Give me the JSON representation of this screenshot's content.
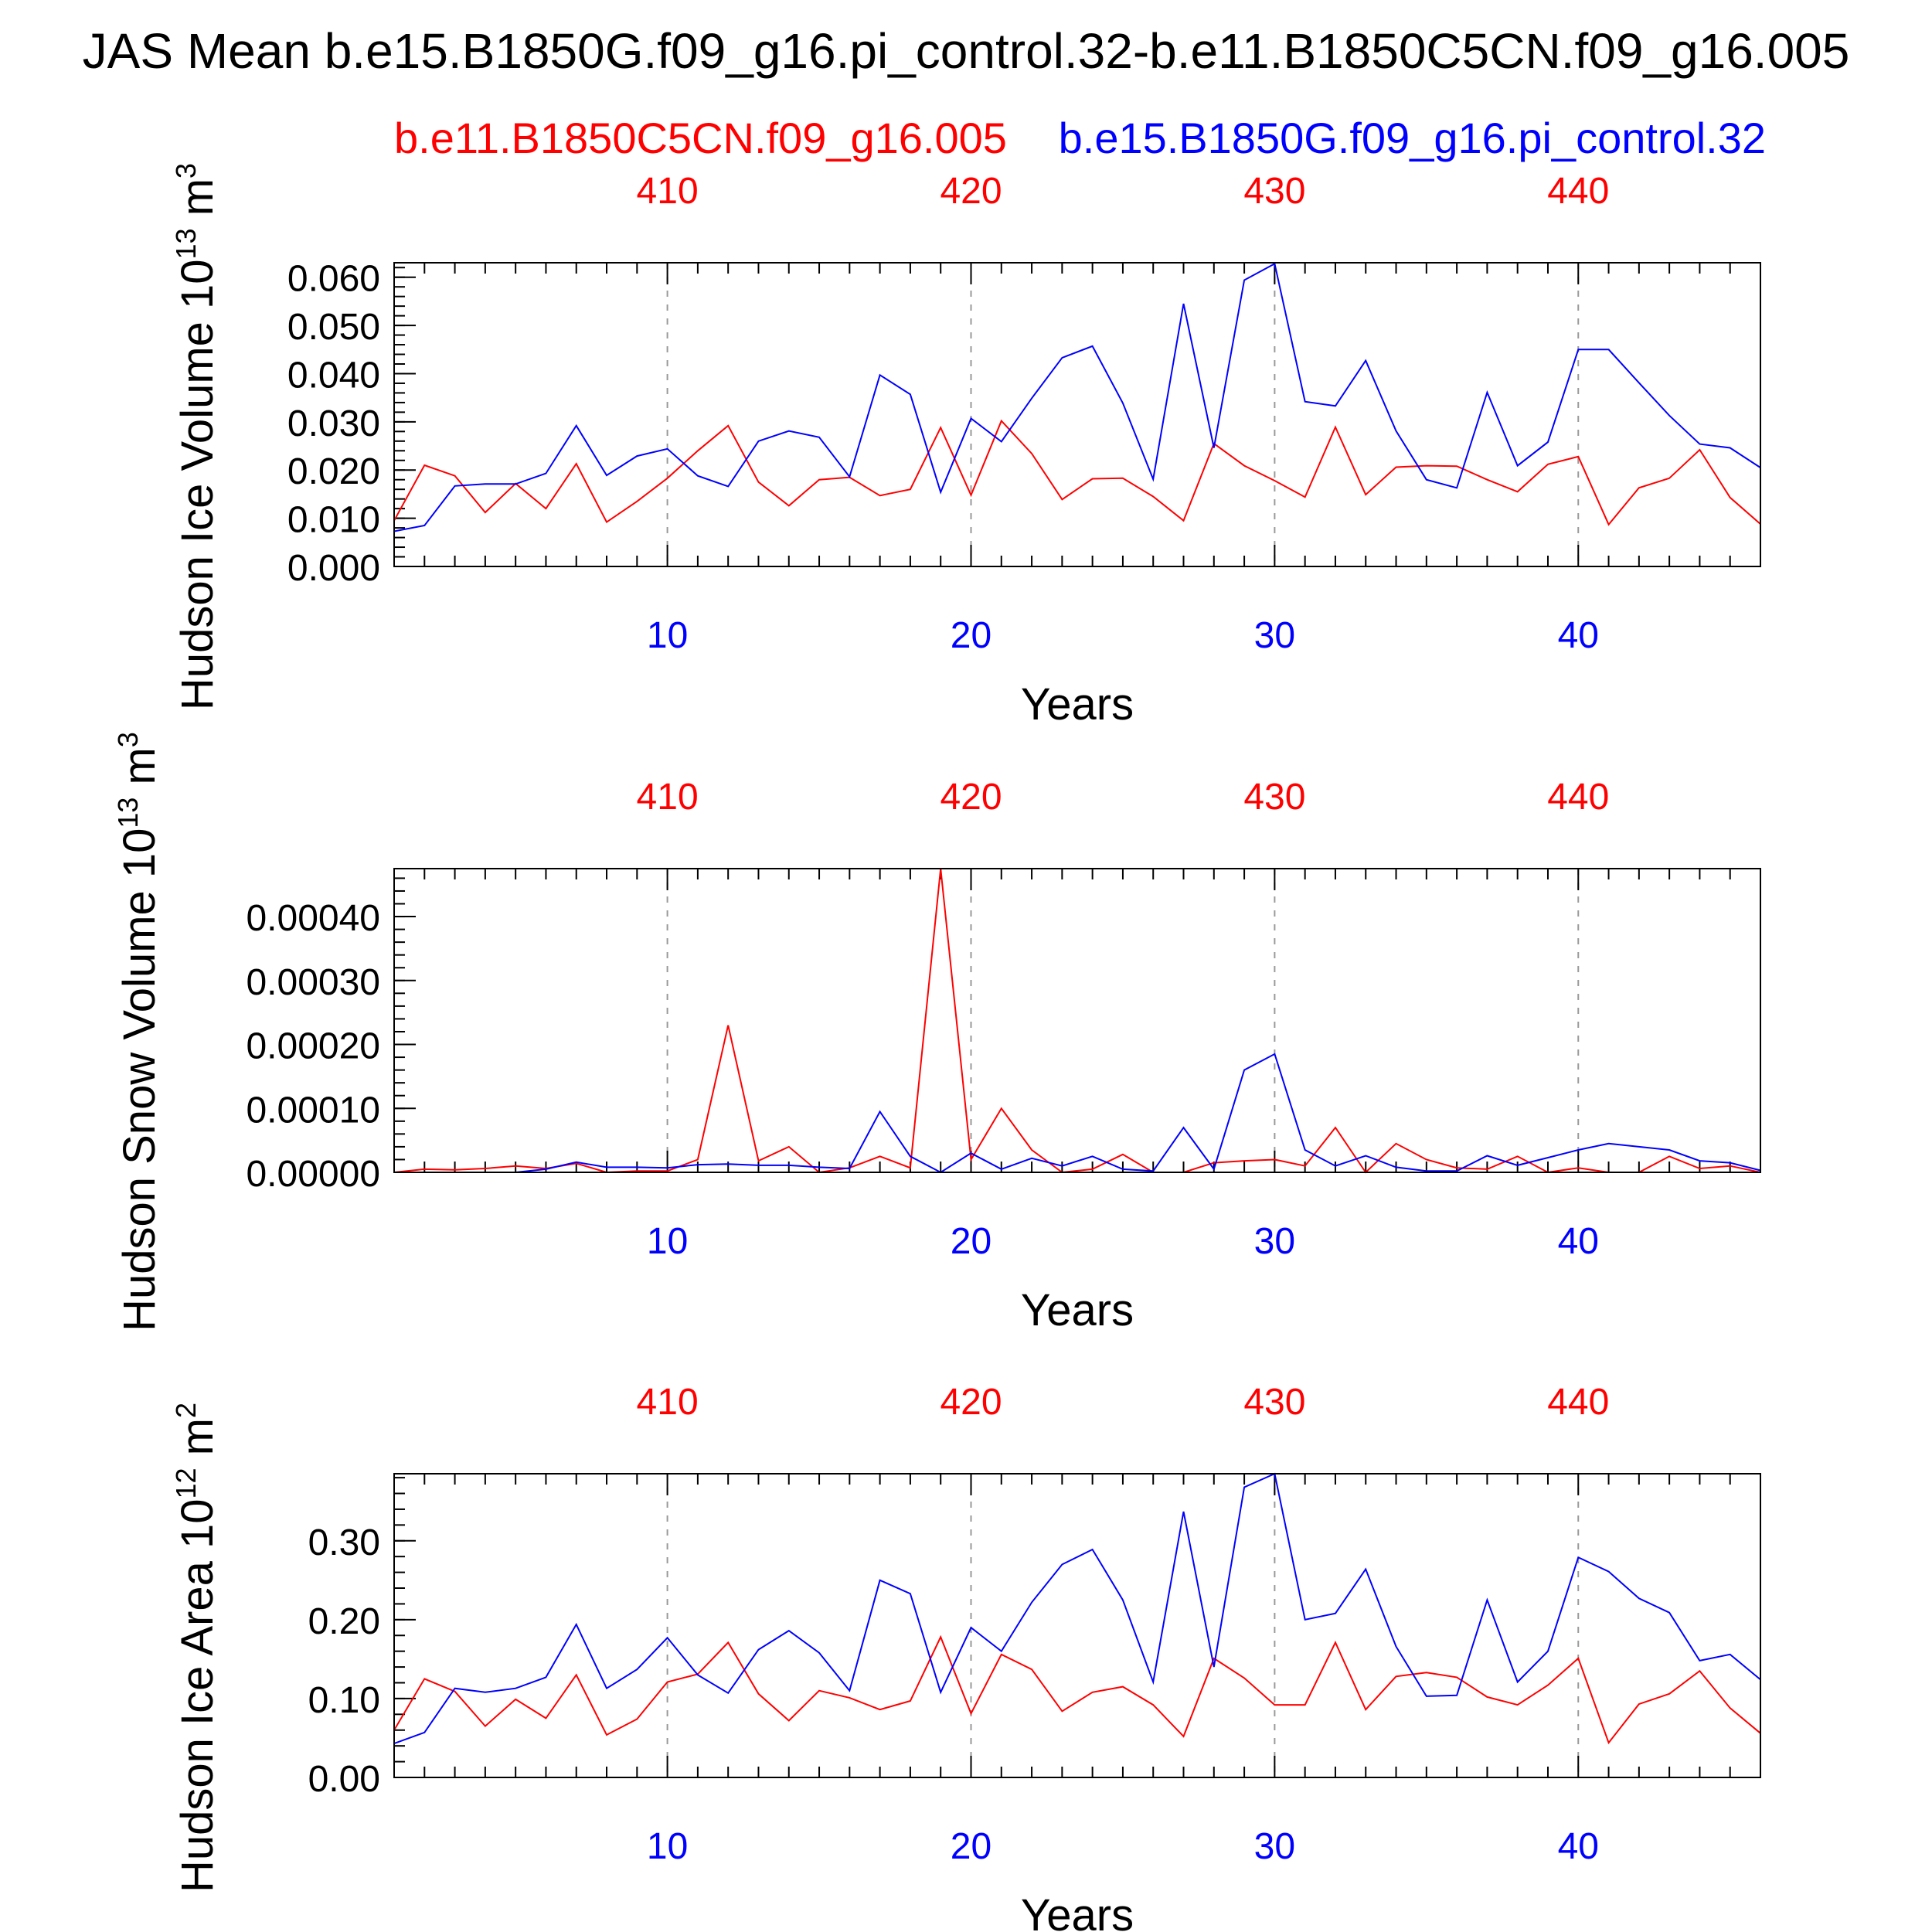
{
  "title": "JAS Mean b.e15.B1850G.f09_g16.pi_control.32-b.e11.B1850C5CN.f09_g16.005",
  "subtitle_left": "b.e11.B1850C5CN.f09_g16.005",
  "subtitle_right": "b.e15.B1850G.f09_g16.pi_control.32",
  "colors": {
    "red_series": "#ff0000",
    "blue_series": "#0000ff",
    "axis": "#000000",
    "grid": "#999999"
  },
  "chart_data": [
    {
      "type": "line",
      "ylabel": "Hudson Ice Volume 10^13 m^3",
      "ylabel_main": "Hudson Ice Volume 10",
      "ylabel_exp1": "13",
      "ylabel_mid": " m",
      "ylabel_exp2": "3",
      "xlabel": "Years",
      "xlim": [
        1,
        46
      ],
      "ylim": [
        0,
        0.063
      ],
      "yticks": [
        0.0,
        0.01,
        0.02,
        0.03,
        0.04,
        0.05,
        0.06
      ],
      "yticklabels": [
        "0.000",
        "0.010",
        "0.020",
        "0.030",
        "0.040",
        "0.050",
        "0.060"
      ],
      "yminor_step": 0.002,
      "bottom_ticks": [
        10,
        20,
        30,
        40
      ],
      "top_ticks": [
        410,
        420,
        430,
        440
      ],
      "grid": true,
      "x": [
        1,
        2,
        3,
        4,
        5,
        6,
        7,
        8,
        9,
        10,
        11,
        12,
        13,
        14,
        15,
        16,
        17,
        18,
        19,
        20,
        21,
        22,
        23,
        24,
        25,
        26,
        27,
        28,
        29,
        30,
        31,
        32,
        33,
        34,
        35,
        36,
        37,
        38,
        39,
        40,
        41,
        42,
        43,
        44,
        45,
        46
      ],
      "series": [
        {
          "color": "red",
          "values": [
            0.0095,
            0.021,
            0.0188,
            0.0112,
            0.0172,
            0.012,
            0.0213,
            0.0092,
            0.0135,
            0.0183,
            0.024,
            0.0292,
            0.0175,
            0.0126,
            0.018,
            0.0185,
            0.0147,
            0.016,
            0.0288,
            0.0148,
            0.0302,
            0.0234,
            0.0139,
            0.0182,
            0.0183,
            0.0145,
            0.0095,
            0.0255,
            0.0209,
            0.0178,
            0.0144,
            0.0289,
            0.0149,
            0.0206,
            0.0209,
            0.0208,
            0.018,
            0.0155,
            0.0212,
            0.0228,
            0.0087,
            0.0163,
            0.0183,
            0.0242,
            0.0143,
            0.0088
          ]
        },
        {
          "color": "blue",
          "values": [
            0.0073,
            0.0085,
            0.0167,
            0.0171,
            0.0171,
            0.0193,
            0.0292,
            0.0189,
            0.0229,
            0.0244,
            0.0188,
            0.0166,
            0.026,
            0.0281,
            0.0268,
            0.0186,
            0.0397,
            0.0357,
            0.0154,
            0.0307,
            0.0259,
            0.0349,
            0.0433,
            0.0457,
            0.0339,
            0.0181,
            0.0545,
            0.0246,
            0.0594,
            0.0628,
            0.0342,
            0.0333,
            0.0427,
            0.0281,
            0.018,
            0.0163,
            0.0361,
            0.0209,
            0.0258,
            0.045,
            0.045,
            0.0381,
            0.0313,
            0.0254,
            0.0246,
            0.0205
          ]
        }
      ]
    },
    {
      "type": "line",
      "ylabel": "Hudson Snow Volume 10^13 m^3",
      "ylabel_main": "Hudson Snow Volume 10",
      "ylabel_exp1": "13",
      "ylabel_mid": " m",
      "ylabel_exp2": "3",
      "xlabel": "Years",
      "xlim": [
        1,
        46
      ],
      "ylim": [
        0,
        0.000475
      ],
      "yticks": [
        0.0,
        0.0001,
        0.0002,
        0.0003,
        0.0004
      ],
      "yticklabels": [
        "0.00000",
        "0.00010",
        "0.00020",
        "0.00030",
        "0.00040"
      ],
      "yminor_step": 2e-05,
      "bottom_ticks": [
        10,
        20,
        30,
        40
      ],
      "top_ticks": [
        410,
        420,
        430,
        440
      ],
      "grid": true,
      "x": [
        1,
        2,
        3,
        4,
        5,
        6,
        7,
        8,
        9,
        10,
        11,
        12,
        13,
        14,
        15,
        16,
        17,
        18,
        19,
        20,
        21,
        22,
        23,
        24,
        25,
        26,
        27,
        28,
        29,
        30,
        31,
        32,
        33,
        34,
        35,
        36,
        37,
        38,
        39,
        40,
        41,
        42,
        43,
        44,
        45,
        46
      ],
      "series": [
        {
          "color": "red",
          "values": [
            0.0,
            5e-06,
            4e-06,
            6e-06,
            1e-05,
            6e-06,
            1.4e-05,
            0.0,
            2e-06,
            2e-06,
            2e-05,
            0.00023,
            1.8e-05,
            4e-05,
            0.0,
            7e-06,
            2.5e-05,
            7e-06,
            0.000475,
            2e-05,
            0.0001,
            3.5e-05,
            0.0,
            5e-06,
            2.8e-05,
            0.0,
            0.0,
            1.5e-05,
            1.8e-05,
            2e-05,
            1e-05,
            7e-05,
            0.0,
            4.5e-05,
            2e-05,
            7e-06,
            5e-06,
            2.5e-05,
            0.0,
            7e-06,
            0.0,
            0.0,
            2.5e-05,
            6e-06,
            1e-05,
            0.0
          ]
        },
        {
          "color": "blue",
          "values": [
            0.0,
            0.0,
            0.0,
            0.0,
            0.0,
            5e-06,
            1.6e-05,
            8e-06,
            8e-06,
            7e-06,
            1.2e-05,
            1.3e-05,
            1.1e-05,
            1.1e-05,
            8e-06,
            6e-06,
            9.5e-05,
            2.5e-05,
            0.0,
            3e-05,
            5e-06,
            2.2e-05,
            1e-05,
            2.5e-05,
            5e-06,
            2e-06,
            7e-05,
            5e-06,
            0.00016,
            0.000185,
            3.5e-05,
            1e-05,
            2.6e-05,
            8e-06,
            2e-06,
            2e-06,
            2.6e-05,
            1.1e-05,
            2.3e-05,
            3.5e-05,
            4.5e-05,
            4e-05,
            3.5e-05,
            1.8e-05,
            1.5e-05,
            3e-06
          ]
        }
      ]
    },
    {
      "type": "line",
      "ylabel": "Hudson Ice Area 10^12 m^2",
      "ylabel_main": "Hudson Ice Area 10",
      "ylabel_exp1": "12",
      "ylabel_mid": " m",
      "ylabel_exp2": "2",
      "xlabel": "Years",
      "xlim": [
        1,
        46
      ],
      "ylim": [
        0,
        0.385
      ],
      "yticks": [
        0.0,
        0.1,
        0.2,
        0.3
      ],
      "yticklabels": [
        "0.00",
        "0.10",
        "0.20",
        "0.30"
      ],
      "yminor_step": 0.02,
      "bottom_ticks": [
        10,
        20,
        30,
        40
      ],
      "top_ticks": [
        410,
        420,
        430,
        440
      ],
      "grid": true,
      "x": [
        1,
        2,
        3,
        4,
        5,
        6,
        7,
        8,
        9,
        10,
        11,
        12,
        13,
        14,
        15,
        16,
        17,
        18,
        19,
        20,
        21,
        22,
        23,
        24,
        25,
        26,
        27,
        28,
        29,
        30,
        31,
        32,
        33,
        34,
        35,
        36,
        37,
        38,
        39,
        40,
        41,
        42,
        43,
        44,
        45,
        46
      ],
      "series": [
        {
          "color": "red",
          "values": [
            0.06,
            0.125,
            0.109,
            0.065,
            0.099,
            0.075,
            0.13,
            0.054,
            0.074,
            0.121,
            0.131,
            0.171,
            0.106,
            0.072,
            0.11,
            0.101,
            0.086,
            0.097,
            0.178,
            0.081,
            0.156,
            0.137,
            0.084,
            0.108,
            0.115,
            0.092,
            0.052,
            0.151,
            0.126,
            0.092,
            0.092,
            0.171,
            0.086,
            0.128,
            0.133,
            0.127,
            0.102,
            0.092,
            0.117,
            0.151,
            0.044,
            0.093,
            0.106,
            0.135,
            0.088,
            0.056
          ]
        },
        {
          "color": "blue",
          "values": [
            0.043,
            0.057,
            0.113,
            0.108,
            0.113,
            0.127,
            0.194,
            0.113,
            0.137,
            0.177,
            0.13,
            0.107,
            0.162,
            0.186,
            0.158,
            0.11,
            0.25,
            0.233,
            0.108,
            0.19,
            0.16,
            0.222,
            0.27,
            0.289,
            0.225,
            0.121,
            0.337,
            0.14,
            0.368,
            0.385,
            0.2,
            0.208,
            0.264,
            0.166,
            0.103,
            0.104,
            0.225,
            0.121,
            0.16,
            0.279,
            0.261,
            0.227,
            0.209,
            0.148,
            0.156,
            0.124
          ]
        }
      ]
    }
  ]
}
